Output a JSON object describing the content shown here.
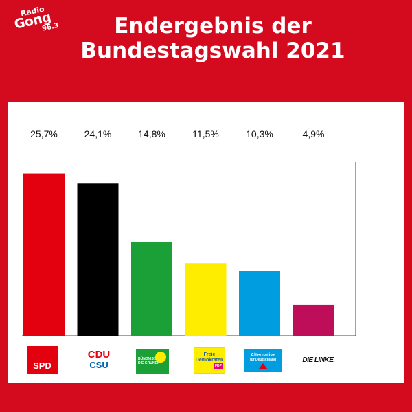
{
  "brand": {
    "line1": "Radio",
    "line2": "Gong",
    "line3": "96.3"
  },
  "title": {
    "line1": "Endergebnis der",
    "line2": "Bundestagswahl 2021"
  },
  "chart_data": {
    "type": "bar",
    "categories": [
      "SPD",
      "CDU/CSU",
      "BÜNDNIS 90 DIE GRÜNEN",
      "Freie Demokraten FDP",
      "Alternative für Deutschland",
      "DIE LINKE."
    ],
    "values": [
      25.7,
      24.1,
      14.8,
      11.5,
      10.3,
      4.9
    ],
    "value_labels": [
      "25,7%",
      "24,1%",
      "14,8%",
      "11,5%",
      "10,3%",
      "4,9%"
    ],
    "colors": [
      "#e3000f",
      "#000000",
      "#1aa037",
      "#ffed00",
      "#009ee0",
      "#be0e5a"
    ],
    "ylim": [
      0,
      27.5
    ],
    "grid": false,
    "legend": "none"
  },
  "logos": {
    "spd": "SPD",
    "cdu": "CDU",
    "csu": "CSU",
    "gruene1": "BÜNDNIS 90",
    "gruene2": "DIE GRÜNEN",
    "fdp1": "Freie",
    "fdp2": "Demokraten",
    "fdp3": "FDP",
    "afd1": "Alternative",
    "afd2": "für Deutschland",
    "linke": "DIE LINKE."
  }
}
